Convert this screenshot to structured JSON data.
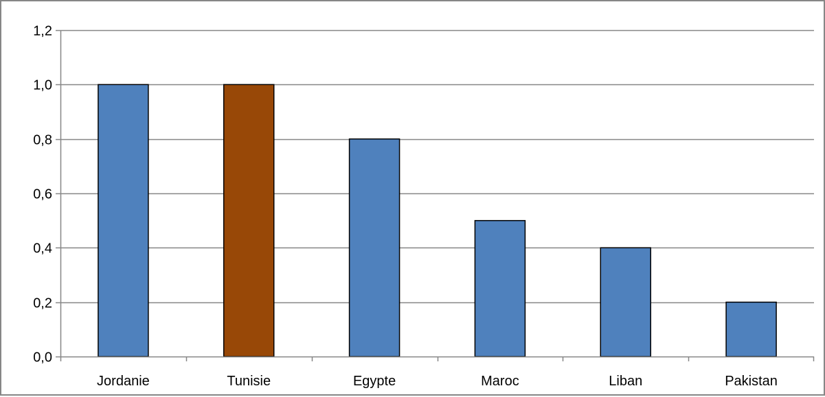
{
  "chart_data": {
    "type": "bar",
    "title": "",
    "xlabel": "",
    "ylabel": "",
    "categories": [
      "Jordanie",
      "Tunisie",
      "Egypte",
      "Maroc",
      "Liban",
      "Pakistan"
    ],
    "values": [
      1.0,
      1.0,
      0.8,
      0.5,
      0.4,
      0.2
    ],
    "ylim": [
      0,
      1.2
    ],
    "yticks": [
      0.0,
      0.2,
      0.4,
      0.6,
      0.8,
      1.0,
      1.2
    ],
    "ytick_labels": [
      "0,0",
      "0,2",
      "0,4",
      "0,6",
      "0,8",
      "1,0",
      "1,2"
    ],
    "grid": true,
    "legend": "none",
    "colors": {
      "default_bar": "#4f81bd",
      "highlight_bar": "#984807",
      "bar_outline": "#000000",
      "gridline": "#868686",
      "axis": "#868686"
    },
    "highlight_category": "Tunisie"
  }
}
